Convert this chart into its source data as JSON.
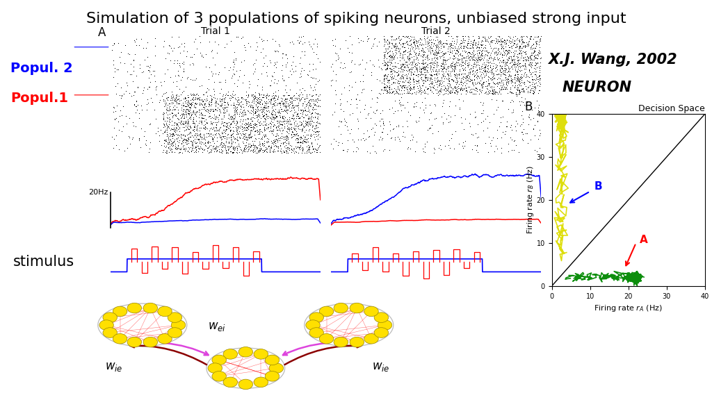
{
  "title": "Simulation of 3 populations of spiking neurons, unbiased strong input",
  "title_fontsize": 16,
  "trial1_label": "Trial 1",
  "trial2_label": "Trial 2",
  "panel_A_label": "A",
  "panel_B_label": "B",
  "popul2_label": "Popul. 2",
  "popul1_label": "Popul.1",
  "popul2_color": "#0000ff",
  "popul1_color": "#ff0000",
  "hz_label": "20Hz",
  "stimulus_label": "stimulus",
  "decision_title": "Decision Space",
  "xlabel_B": "Firing rate r_A (Hz)",
  "ylabel_B": "Firing rate r_B (Hz)",
  "background_color": "#ffffff",
  "wang_line1": "X.J. Wang, 2002",
  "wang_line2": "NEURON"
}
